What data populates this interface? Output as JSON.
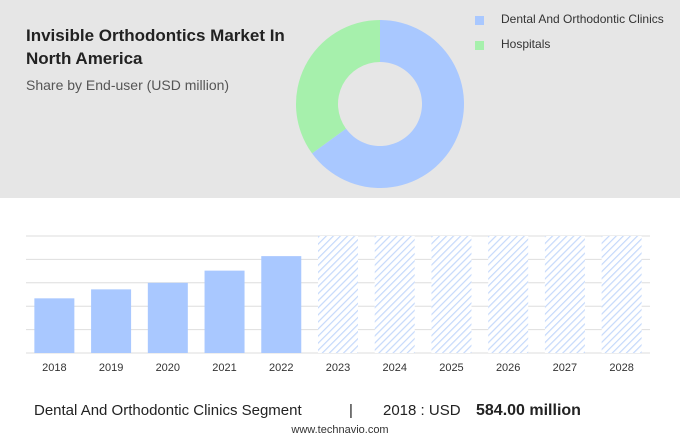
{
  "title": "Invisible Orthodontics Market In North America",
  "subtitle": "Share by End-user (USD million)",
  "colors": {
    "clinics": "#a9c8ff",
    "hospitals": "#a6f0ac",
    "forecast_hatch": "#c5d9fb",
    "panel_bg": "#e6e6e6",
    "grid": "#dedede"
  },
  "chart_data": [
    {
      "type": "pie",
      "variant": "donut",
      "legend": "top-right",
      "labels": [
        "Dental And Orthodontic Clinics",
        "Hospitals"
      ],
      "values": [
        65,
        35
      ]
    },
    {
      "type": "bar",
      "categories": [
        "2018",
        "2019",
        "2020",
        "2021",
        "2022",
        "2023",
        "2024",
        "2025",
        "2026",
        "2027",
        "2028"
      ],
      "values": [
        584,
        680,
        750,
        880,
        1035,
        1250,
        1250,
        1250,
        1250,
        1250,
        1250
      ],
      "forecast_from": "2023",
      "ylim": [
        0,
        1250
      ],
      "grid": true
    }
  ],
  "footer": {
    "segment": "Dental And Orthodontic Clinics Segment",
    "separator": "|",
    "year_label": "2018 : USD",
    "value": "584.00 million"
  },
  "website": "www.technavio.com"
}
